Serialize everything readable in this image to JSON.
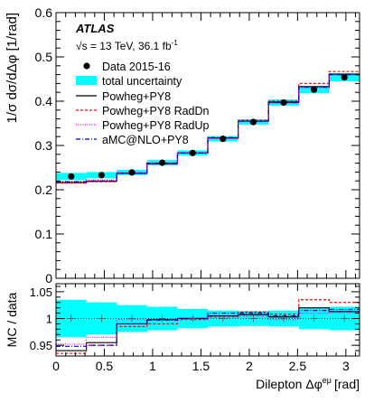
{
  "chart_data": [
    {
      "type": "line",
      "panel": "main",
      "experiment": "ATLAS",
      "energy_label": "√s = 13 TeV, 36.1 fb",
      "energy_sup": "-1",
      "ylabel": "1/σ dσ/dΔφ [1/rad]",
      "ylim": [
        0,
        0.6
      ],
      "yticks": [
        "0",
        "0.1",
        "0.2",
        "0.3",
        "0.4",
        "0.5",
        "0.6"
      ],
      "xlim": [
        0,
        3.1416
      ],
      "xticks": [
        "0",
        "0.5",
        "1",
        "1.5",
        "2",
        "2.5",
        "3"
      ],
      "bin_edges": [
        0,
        0.314,
        0.628,
        0.942,
        1.257,
        1.571,
        1.885,
        2.199,
        2.513,
        2.827,
        3.1416
      ],
      "legend": {
        "data": "Data 2015-16",
        "band": "total uncertainty",
        "powheg": "Powheg+PY8",
        "raddn": "Powheg+PY8 RadDn",
        "radup": "Powheg+PY8 RadUp",
        "amc": "aMC@NLO+PY8"
      },
      "data_points": [
        0.23,
        0.233,
        0.239,
        0.261,
        0.283,
        0.315,
        0.353,
        0.397,
        0.426,
        0.454
      ],
      "band_halfwidth": [
        0.008,
        0.007,
        0.006,
        0.006,
        0.006,
        0.006,
        0.006,
        0.007,
        0.008,
        0.009
      ],
      "series": [
        {
          "name": "Powheg+PY8",
          "key": "powheg",
          "values": [
            0.216,
            0.219,
            0.237,
            0.259,
            0.283,
            0.317,
            0.355,
            0.398,
            0.433,
            0.461
          ]
        },
        {
          "name": "Powheg+PY8 RadDn",
          "key": "raddn",
          "values": [
            0.215,
            0.218,
            0.237,
            0.258,
            0.283,
            0.316,
            0.357,
            0.4,
            0.44,
            0.467
          ]
        },
        {
          "name": "Powheg+PY8 RadUp",
          "key": "radup",
          "values": [
            0.219,
            0.222,
            0.239,
            0.26,
            0.283,
            0.316,
            0.354,
            0.396,
            0.43,
            0.46
          ]
        },
        {
          "name": "aMC@NLO+PY8",
          "key": "amc",
          "values": [
            0.218,
            0.22,
            0.237,
            0.26,
            0.283,
            0.318,
            0.355,
            0.397,
            0.432,
            0.46
          ]
        }
      ]
    },
    {
      "type": "line",
      "panel": "ratio",
      "ylabel": "MC / data",
      "ylim": [
        0.93,
        1.065
      ],
      "yticks": [
        "0.95",
        "1",
        "1.05"
      ],
      "xlabel": "Dilepton Δφ",
      "xlabel_sup": "eμ",
      "xlabel_unit": "[rad]",
      "band_halfwidth": [
        0.035,
        0.03,
        0.025,
        0.022,
        0.018,
        0.015,
        0.014,
        0.015,
        0.02,
        0.022
      ],
      "series": [
        {
          "name": "Powheg+PY8",
          "key": "powheg",
          "values": [
            0.94,
            0.955,
            0.99,
            0.998,
            1.0,
            1.005,
            1.007,
            1.003,
            1.02,
            1.013
          ]
        },
        {
          "name": "Powheg+PY8 RadDn",
          "key": "raddn",
          "values": [
            0.935,
            0.95,
            0.985,
            0.99,
            0.998,
            1.003,
            1.012,
            1.008,
            1.035,
            1.03
          ]
        },
        {
          "name": "Powheg+PY8 RadUp",
          "key": "radup",
          "values": [
            0.952,
            0.965,
            0.998,
            0.997,
            1.001,
            1.004,
            1.004,
            0.998,
            1.01,
            1.011
          ]
        },
        {
          "name": "aMC@NLO+PY8",
          "key": "amc",
          "values": [
            0.948,
            0.95,
            0.99,
            0.997,
            1.0,
            1.01,
            1.01,
            1.005,
            1.015,
            1.017
          ]
        }
      ]
    }
  ],
  "colors": {
    "band": "#00ffff",
    "data": "#000000",
    "powheg": "#000000",
    "raddn": "#ff0000",
    "radup": "#ff00ff",
    "amc": "#0000cc"
  }
}
